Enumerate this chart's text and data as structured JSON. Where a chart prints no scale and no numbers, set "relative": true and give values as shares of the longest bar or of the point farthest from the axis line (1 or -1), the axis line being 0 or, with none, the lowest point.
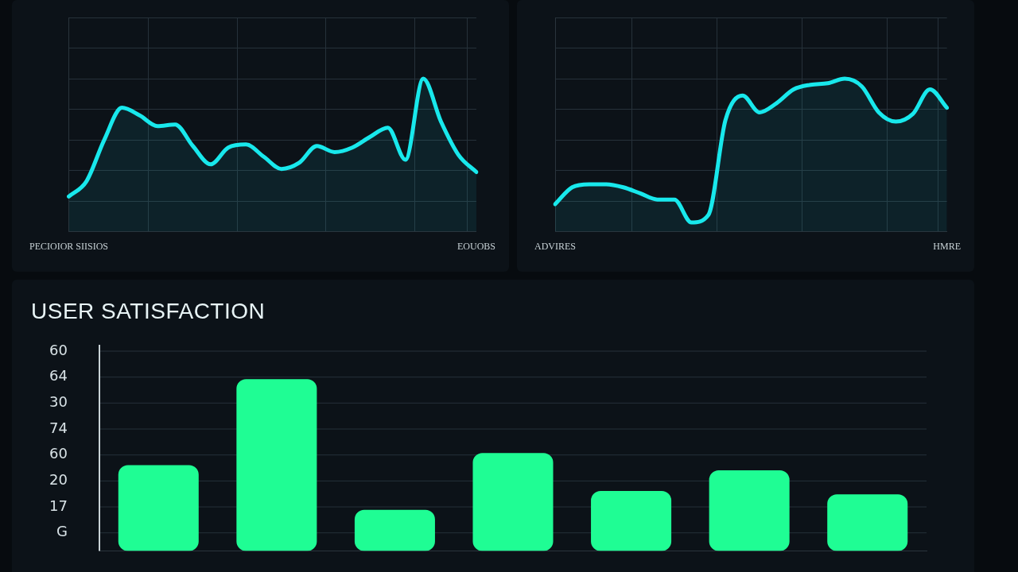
{
  "chart_data": [
    {
      "type": "area",
      "relative": true,
      "grid": true,
      "categories": [
        "PECIOIOR SIISIOS",
        null,
        null,
        null,
        null,
        null,
        null,
        null,
        null,
        null,
        null,
        null,
        null,
        null,
        null,
        null,
        null,
        null,
        null,
        null,
        null,
        null,
        null,
        "EOUOBS"
      ],
      "series": [
        {
          "color": "#18e8ec",
          "values": [
            0.23,
            0.33,
            0.6,
            0.81,
            0.76,
            0.69,
            0.7,
            0.56,
            0.44,
            0.55,
            0.57,
            0.49,
            0.41,
            0.45,
            0.56,
            0.52,
            0.55,
            0.62,
            0.68,
            0.47,
            1,
            0.72,
            0.5,
            0.39
          ]
        }
      ]
    },
    {
      "type": "area",
      "relative": true,
      "grid": true,
      "categories": [
        "ADVIRES",
        null,
        null,
        null,
        null,
        null,
        null,
        null,
        null,
        null,
        null,
        null,
        null,
        null,
        null,
        null,
        null,
        null,
        null,
        null,
        null,
        null,
        null,
        "HMRE"
      ],
      "series": [
        {
          "color": "#18e8ec",
          "values": [
            0.18,
            0.29,
            0.31,
            0.31,
            0.29,
            0.25,
            0.21,
            0.21,
            0.06,
            0.11,
            0.73,
            0.89,
            0.78,
            0.84,
            0.93,
            0.96,
            0.97,
            1,
            0.95,
            0.78,
            0.72,
            0.77,
            0.93,
            0.81
          ]
        }
      ]
    },
    {
      "type": "bar",
      "title": "USER SATISFACTION",
      "relative": true,
      "grid": "y",
      "categories": [
        null,
        null,
        null,
        null,
        null,
        null,
        null
      ],
      "series": [
        {
          "color": "#1ffd94",
          "values": [
            0.5,
            1,
            0.24,
            0.57,
            0.35,
            0.47,
            0.33
          ]
        }
      ],
      "annotations": [
        "60",
        "64",
        "30",
        "74",
        "60",
        "20",
        "17",
        "G"
      ]
    }
  ]
}
